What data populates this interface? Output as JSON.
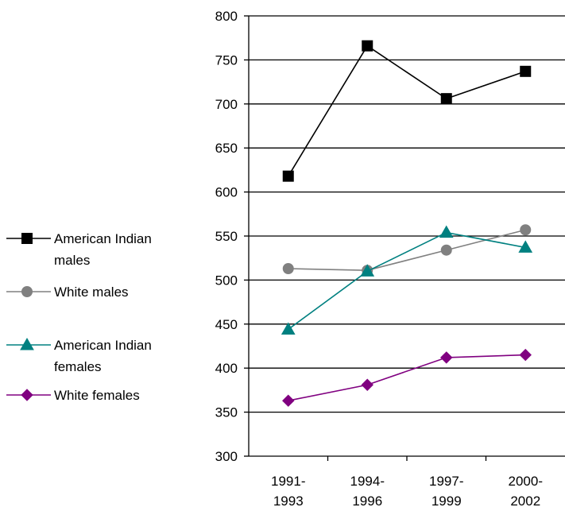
{
  "chart_data": {
    "type": "line",
    "title": "",
    "xlabel": "",
    "ylabel": "",
    "categories": [
      [
        "1991-",
        "1993"
      ],
      [
        "1994-",
        "1996"
      ],
      [
        "1997-",
        "1999"
      ],
      [
        "2000-",
        "2002"
      ]
    ],
    "ylim": [
      300,
      800
    ],
    "yticks": [
      300,
      350,
      400,
      450,
      500,
      550,
      600,
      650,
      700,
      750,
      800
    ],
    "grid": "horizontal",
    "legend_position": "left",
    "series": [
      {
        "name_lines": [
          "American Indian",
          "males"
        ],
        "name": "American Indian males",
        "values": [
          618,
          766,
          706,
          737
        ],
        "color": "#000000",
        "marker": "square"
      },
      {
        "name_lines": [
          "White males"
        ],
        "name": "White males",
        "values": [
          513,
          511,
          534,
          557
        ],
        "color": "#808080",
        "marker": "circle"
      },
      {
        "name_lines": [
          "American Indian",
          "females"
        ],
        "name": "American Indian females",
        "values": [
          444,
          510,
          554,
          537
        ],
        "color": "#008080",
        "marker": "triangle"
      },
      {
        "name_lines": [
          "White females"
        ],
        "name": "White females",
        "values": [
          363,
          381,
          412,
          415
        ],
        "color": "#800080",
        "marker": "diamond"
      }
    ]
  }
}
